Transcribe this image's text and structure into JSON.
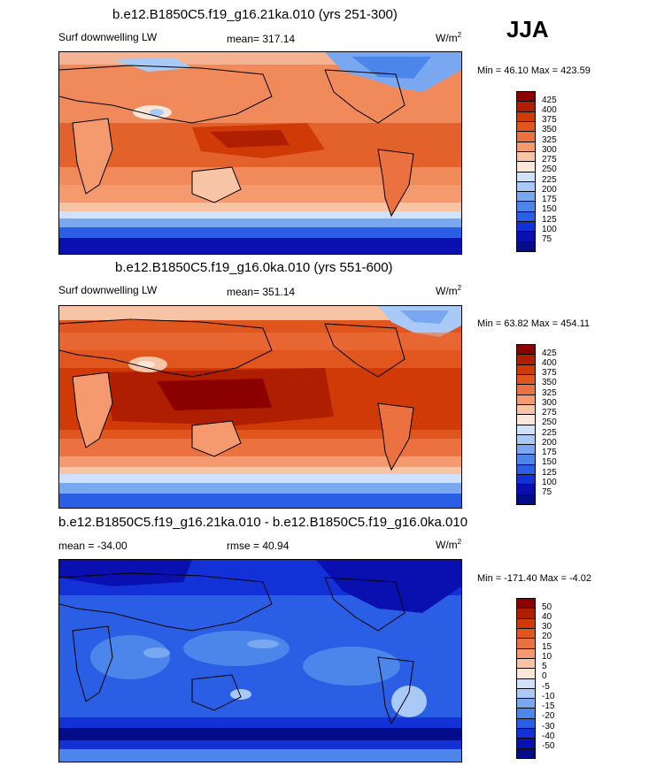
{
  "season": "JJA",
  "panels": [
    {
      "title": "b.e12.B1850C5.f19_g16.21ka.010 (yrs 251-300)",
      "left_label": "Surf downwelling LW",
      "center_label": "mean= 317.14",
      "units": "W/m",
      "units_sup": "2",
      "minmax": "Min =  46.10 Max = 423.59",
      "levels": [
        "425",
        "400",
        "375",
        "350",
        "325",
        "300",
        "275",
        "250",
        "225",
        "200",
        "175",
        "150",
        "125",
        "100",
        "75"
      ],
      "colors": [
        "#8b0000",
        "#b01e00",
        "#cf3a06",
        "#e0561e",
        "#ec7140",
        "#f49a6e",
        "#f8c4a6",
        "#fbe7da",
        "#cfe1fb",
        "#a9c9f7",
        "#7aa8f0",
        "#4d86ea",
        "#2a5ee4",
        "#1232d8",
        "#0a10b0",
        "#050c8a"
      ]
    },
    {
      "title": "b.e12.B1850C5.f19_g16.0ka.010 (yrs 551-600)",
      "left_label": "Surf downwelling LW",
      "center_label": "mean= 351.14",
      "units": "W/m",
      "units_sup": "2",
      "minmax": "Min =  63.82 Max = 454.11",
      "levels": [
        "425",
        "400",
        "375",
        "350",
        "325",
        "300",
        "275",
        "250",
        "225",
        "200",
        "175",
        "150",
        "125",
        "100",
        "75"
      ],
      "colors": [
        "#8b0000",
        "#b01e00",
        "#cf3a06",
        "#e0561e",
        "#ec7140",
        "#f49a6e",
        "#f8c4a6",
        "#fbe7da",
        "#cfe1fb",
        "#a9c9f7",
        "#7aa8f0",
        "#4d86ea",
        "#2a5ee4",
        "#1232d8",
        "#0a10b0",
        "#050c8a"
      ]
    },
    {
      "title": "b.e12.B1850C5.f19_g16.21ka.010 - b.e12.B1850C5.f19_g16.0ka.010",
      "left_label": "mean = -34.00",
      "center_label": "rmse =  40.94",
      "units": "W/m",
      "units_sup": "2",
      "minmax": "Min = -171.40 Max =  -4.02",
      "levels": [
        "50",
        "40",
        "30",
        "20",
        "15",
        "10",
        "5",
        "0",
        "-5",
        "-10",
        "-15",
        "-20",
        "-30",
        "-40",
        "-50"
      ],
      "colors": [
        "#8b0000",
        "#b01e00",
        "#cf3a06",
        "#e0561e",
        "#ec7140",
        "#f49a6e",
        "#f8c4a6",
        "#fbe7da",
        "#cfe1fb",
        "#a9c9f7",
        "#7aa8f0",
        "#4d86ea",
        "#2a5ee4",
        "#1232d8",
        "#0a10b0",
        "#050c8a"
      ]
    }
  ]
}
